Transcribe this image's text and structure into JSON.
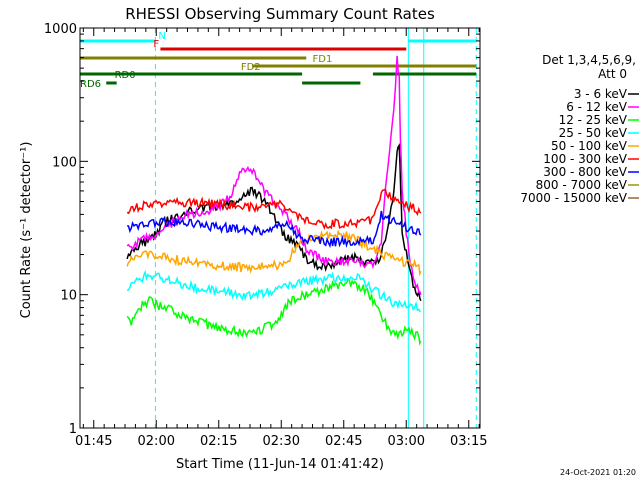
{
  "chart_data": {
    "type": "line",
    "title": "RHESSI Observing Summary Count Rates",
    "xlabel": "Start Time (11-Jun-14 01:41:42)",
    "ylabel": "Count Rate (s⁻¹ detector⁻¹)",
    "x_unit": "minutes",
    "xlim": [
      101.7,
      197.7
    ],
    "ylim": [
      1,
      1000
    ],
    "y_scale": "log",
    "x_ticks": [
      {
        "value": 105,
        "label": "01:45"
      },
      {
        "value": 120,
        "label": "02:00"
      },
      {
        "value": 135,
        "label": "02:15"
      },
      {
        "value": 150,
        "label": "02:30"
      },
      {
        "value": 165,
        "label": "02:45"
      },
      {
        "value": 180,
        "label": "03:00"
      },
      {
        "value": 195,
        "label": "03:15"
      }
    ],
    "y_ticks": [
      {
        "value": 1,
        "label": "1"
      },
      {
        "value": 10,
        "label": "10"
      },
      {
        "value": 100,
        "label": "100"
      },
      {
        "value": 1000,
        "label": "1000"
      }
    ],
    "legend": {
      "title_lines": [
        "Det 1,3,4,5,6,9,",
        "Att 0"
      ],
      "position": "right"
    },
    "timestamp": "24-Oct-2021 01:20",
    "series": [
      {
        "name": "3 - 6 keV",
        "color": "#000000",
        "points": [
          [
            113,
            20
          ],
          [
            116,
            24
          ],
          [
            119,
            26
          ],
          [
            122,
            35
          ],
          [
            126,
            40
          ],
          [
            130,
            44
          ],
          [
            134,
            46
          ],
          [
            138,
            48
          ],
          [
            141,
            55
          ],
          [
            143,
            60
          ],
          [
            145,
            55
          ],
          [
            147,
            45
          ],
          [
            149,
            35
          ],
          [
            150,
            30
          ],
          [
            152,
            26
          ],
          [
            154,
            24
          ],
          [
            156,
            18
          ],
          [
            158,
            17
          ],
          [
            160,
            16
          ],
          [
            162,
            17
          ],
          [
            164,
            18
          ],
          [
            166,
            19
          ],
          [
            168,
            19
          ],
          [
            170,
            18
          ],
          [
            172,
            17
          ],
          [
            173,
            18
          ],
          [
            174,
            20
          ],
          [
            175,
            25
          ],
          [
            176,
            40
          ],
          [
            177,
            60
          ],
          [
            177.8,
            120
          ],
          [
            178.3,
            130
          ],
          [
            178.7,
            60
          ],
          [
            179,
            30
          ],
          [
            180,
            20
          ],
          [
            181,
            15
          ],
          [
            182,
            11
          ],
          [
            183,
            10
          ],
          [
            183.5,
            9
          ]
        ]
      },
      {
        "name": "6 - 12 keV",
        "color": "#ff00ff",
        "points": [
          [
            113,
            22
          ],
          [
            116,
            25
          ],
          [
            119,
            27
          ],
          [
            122,
            32
          ],
          [
            126,
            38
          ],
          [
            130,
            42
          ],
          [
            134,
            44
          ],
          [
            138,
            55
          ],
          [
            140,
            80
          ],
          [
            142,
            95
          ],
          [
            144,
            75
          ],
          [
            146,
            60
          ],
          [
            148,
            50
          ],
          [
            150,
            45
          ],
          [
            152,
            35
          ],
          [
            154,
            30
          ],
          [
            156,
            22
          ],
          [
            158,
            20
          ],
          [
            160,
            18
          ],
          [
            162,
            17
          ],
          [
            164,
            18
          ],
          [
            166,
            18
          ],
          [
            168,
            18
          ],
          [
            170,
            17
          ],
          [
            172,
            17
          ],
          [
            173,
            19
          ],
          [
            174,
            25
          ],
          [
            175,
            60
          ],
          [
            176,
            120
          ],
          [
            177,
            250
          ],
          [
            177.8,
            580
          ],
          [
            178.3,
            450
          ],
          [
            178.6,
            150
          ],
          [
            179,
            60
          ],
          [
            180,
            30
          ],
          [
            181,
            18
          ],
          [
            182,
            13
          ],
          [
            183,
            11
          ],
          [
            183.5,
            10
          ]
        ]
      },
      {
        "name": "12 - 25 keV",
        "color": "#00ff00",
        "points": [
          [
            113,
            7
          ],
          [
            114,
            6
          ],
          [
            116,
            8
          ],
          [
            118,
            9
          ],
          [
            120,
            8.5
          ],
          [
            124,
            7.5
          ],
          [
            128,
            6.5
          ],
          [
            132,
            6
          ],
          [
            136,
            5.5
          ],
          [
            140,
            5.2
          ],
          [
            144,
            5.2
          ],
          [
            148,
            6
          ],
          [
            150,
            7
          ],
          [
            152,
            9
          ],
          [
            156,
            10
          ],
          [
            160,
            11
          ],
          [
            164,
            12
          ],
          [
            168,
            12
          ],
          [
            170,
            11
          ],
          [
            172,
            9
          ],
          [
            174,
            7
          ],
          [
            176,
            5.5
          ],
          [
            178,
            5
          ],
          [
            180,
            5.5
          ],
          [
            182,
            5
          ],
          [
            183,
            4.8
          ],
          [
            183.5,
            4.5
          ]
        ]
      },
      {
        "name": "25 - 50 keV",
        "color": "#00ffff",
        "points": [
          [
            113,
            10
          ],
          [
            114,
            12
          ],
          [
            116,
            13
          ],
          [
            118,
            14
          ],
          [
            120,
            13.5
          ],
          [
            124,
            12.5
          ],
          [
            128,
            11.5
          ],
          [
            132,
            11
          ],
          [
            136,
            10.5
          ],
          [
            140,
            10
          ],
          [
            144,
            10
          ],
          [
            148,
            10.5
          ],
          [
            150,
            11
          ],
          [
            152,
            12
          ],
          [
            156,
            12.5
          ],
          [
            160,
            13
          ],
          [
            164,
            13.5
          ],
          [
            168,
            13.5
          ],
          [
            170,
            12.5
          ],
          [
            172,
            11
          ],
          [
            174,
            10
          ],
          [
            176,
            9
          ],
          [
            178,
            8.5
          ],
          [
            180,
            8.5
          ],
          [
            182,
            8
          ],
          [
            183,
            7.8
          ],
          [
            183.5,
            7.5
          ]
        ]
      },
      {
        "name": "50 - 100 keV",
        "color": "#ffa500",
        "points": [
          [
            113,
            17
          ],
          [
            114,
            18
          ],
          [
            116,
            19
          ],
          [
            118,
            20
          ],
          [
            120,
            19.5
          ],
          [
            124,
            18.5
          ],
          [
            128,
            17.5
          ],
          [
            132,
            17
          ],
          [
            136,
            16.5
          ],
          [
            140,
            16
          ],
          [
            144,
            16
          ],
          [
            148,
            16.5
          ],
          [
            150,
            17
          ],
          [
            152,
            19
          ],
          [
            154,
            24
          ],
          [
            156,
            26
          ],
          [
            160,
            27
          ],
          [
            164,
            28
          ],
          [
            166,
            27.5
          ],
          [
            168,
            26
          ],
          [
            170,
            24
          ],
          [
            172,
            22
          ],
          [
            174,
            20
          ],
          [
            176,
            19
          ],
          [
            178,
            18
          ],
          [
            180,
            17.5
          ],
          [
            182,
            16.5
          ],
          [
            183,
            15.5
          ],
          [
            183.5,
            15
          ]
        ]
      },
      {
        "name": "100 - 300 keV",
        "color": "#ff0000",
        "points": [
          [
            113,
            42
          ],
          [
            116,
            46
          ],
          [
            120,
            48
          ],
          [
            124,
            49
          ],
          [
            128,
            49
          ],
          [
            132,
            48
          ],
          [
            136,
            47
          ],
          [
            140,
            46
          ],
          [
            144,
            45
          ],
          [
            148,
            46
          ],
          [
            150,
            47
          ],
          [
            152,
            46
          ],
          [
            154,
            38
          ],
          [
            156,
            36
          ],
          [
            158,
            35
          ],
          [
            160,
            34
          ],
          [
            164,
            34
          ],
          [
            168,
            34
          ],
          [
            170,
            35
          ],
          [
            172,
            36
          ],
          [
            174,
            60
          ],
          [
            175,
            58
          ],
          [
            176,
            55
          ],
          [
            178,
            52
          ],
          [
            180,
            47
          ],
          [
            182,
            44
          ],
          [
            183,
            42
          ],
          [
            183.5,
            41
          ]
        ]
      },
      {
        "name": "300 - 800 keV",
        "color": "#0000ff",
        "points": [
          [
            113,
            32
          ],
          [
            116,
            34
          ],
          [
            120,
            35
          ],
          [
            124,
            35
          ],
          [
            128,
            34
          ],
          [
            132,
            33
          ],
          [
            136,
            32
          ],
          [
            140,
            31
          ],
          [
            144,
            30
          ],
          [
            148,
            31
          ],
          [
            150,
            32
          ],
          [
            152,
            33
          ],
          [
            154,
            27
          ],
          [
            156,
            26
          ],
          [
            158,
            25.5
          ],
          [
            160,
            25
          ],
          [
            164,
            25
          ],
          [
            168,
            25
          ],
          [
            170,
            25.5
          ],
          [
            172,
            26
          ],
          [
            174,
            40
          ],
          [
            175,
            38
          ],
          [
            176,
            36
          ],
          [
            178,
            34
          ],
          [
            180,
            32
          ],
          [
            182,
            30
          ],
          [
            183,
            29
          ],
          [
            183.5,
            28
          ]
        ]
      },
      {
        "name": "800 - 7000 keV",
        "color": "#999900",
        "points": []
      },
      {
        "name": "7000 - 15000 keV",
        "color": "#996633",
        "points": []
      }
    ],
    "vertical_lines": [
      {
        "x": 101.7,
        "color": "#00ffff",
        "style": "solid"
      },
      {
        "x": 119.8,
        "color": "#00ffff",
        "style": "dashed"
      },
      {
        "x": 180.5,
        "color": "#00ffff",
        "style": "solid"
      },
      {
        "x": 184.2,
        "color": "#00ffff",
        "style": "solid"
      },
      {
        "x": 196.8,
        "color": "#00ffff",
        "style": "dashed"
      }
    ],
    "flag_bars": [
      {
        "name": "N",
        "color": "#00ffff",
        "y": 1,
        "segments": [
          [
            101.7,
            119.8
          ],
          [
            180.5,
            196.8
          ]
        ],
        "label": "N",
        "label_x": 120.5,
        "label_side": "above"
      },
      {
        "name": "F",
        "color": "#dd0000",
        "y": 2,
        "segments": [
          [
            121,
            180
          ]
        ],
        "label": "F",
        "label_x": 119.3,
        "label_side": "above"
      },
      {
        "name": "FD1",
        "color": "#808000",
        "y": 3,
        "segments": [
          [
            101.7,
            156
          ]
        ],
        "label": "FD1",
        "label_x": 157.5,
        "label_side": "inline"
      },
      {
        "name": "FD2",
        "color": "#808000",
        "y": 4,
        "segments": [
          [
            143,
            196.8
          ]
        ],
        "label": "FD2",
        "label_x": 140.3,
        "label_side": "inline"
      },
      {
        "name": "RD0",
        "color": "#006600",
        "y": 5,
        "segments": [
          [
            101.7,
            155
          ],
          [
            172,
            196.8
          ]
        ],
        "label": "RD0",
        "label_x": 110,
        "label_side": "inline"
      },
      {
        "name": "RD6",
        "color": "#006600",
        "y": 6,
        "segments": [
          [
            108,
            110.5
          ],
          [
            155,
            169
          ]
        ],
        "label": "RD6",
        "label_x": 101.7,
        "label_side": "inline"
      }
    ]
  }
}
